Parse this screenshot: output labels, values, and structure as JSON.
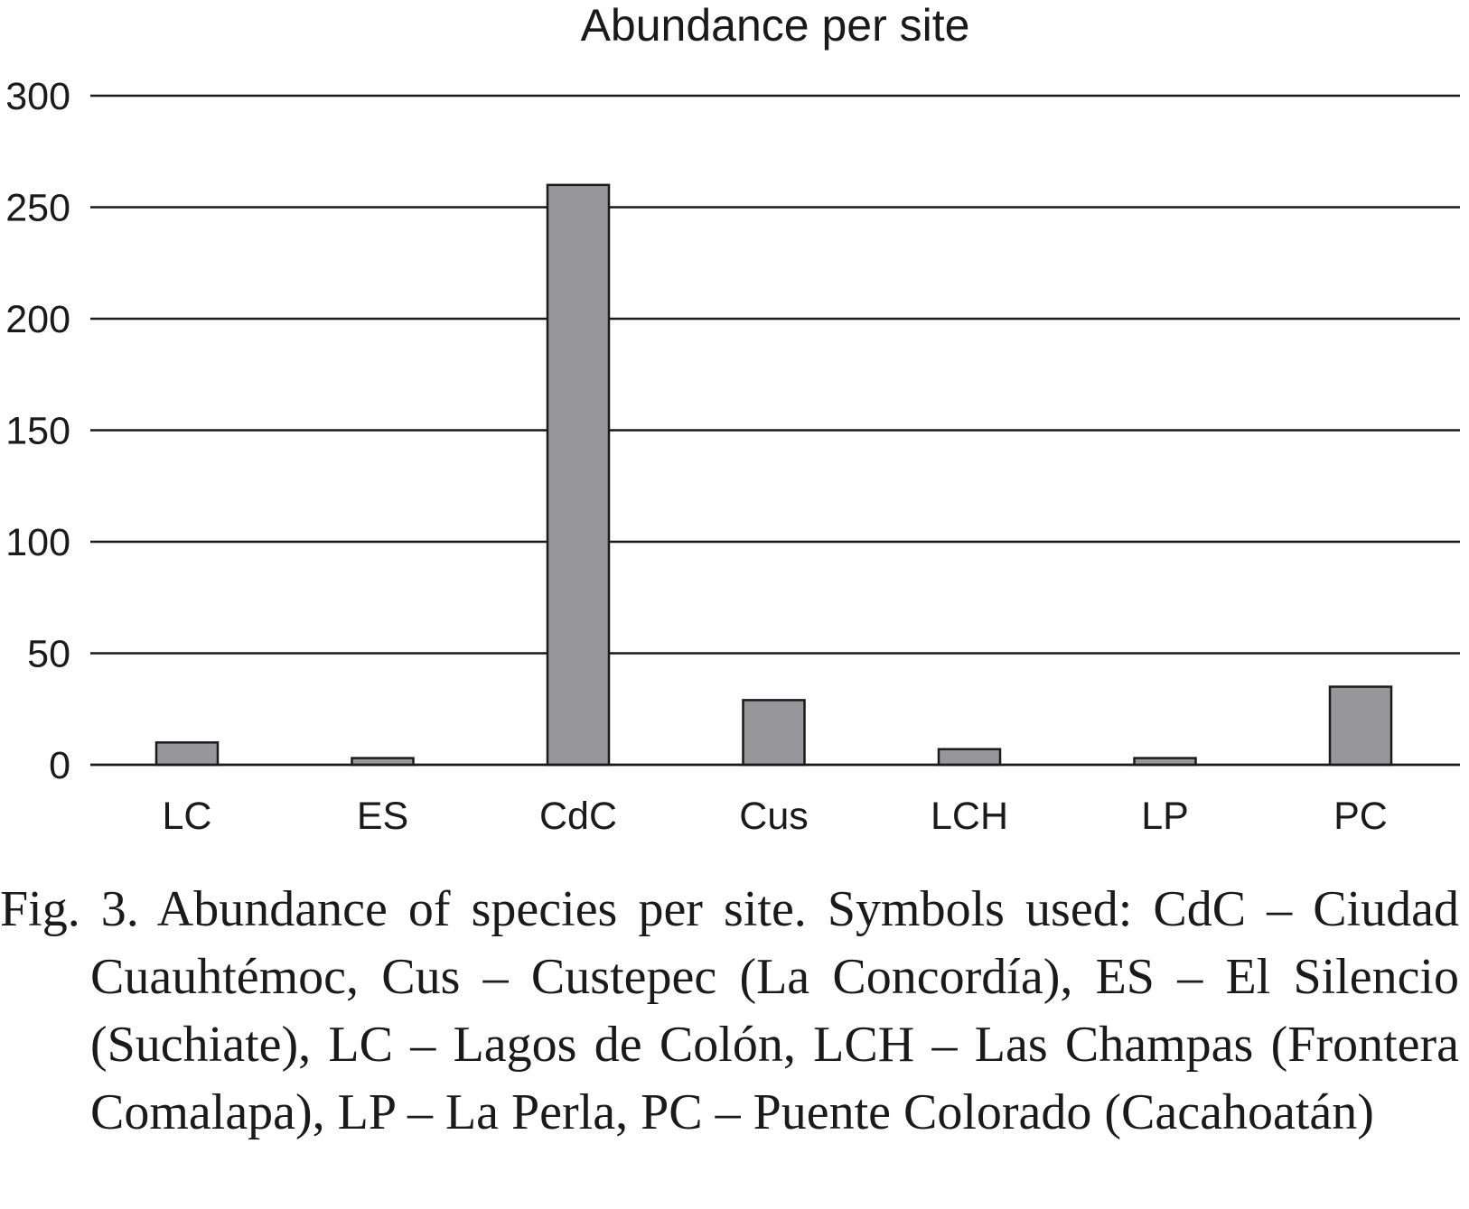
{
  "chart_data": {
    "type": "bar",
    "title": "Abundance per site",
    "xlabel": "",
    "ylabel": "",
    "categories": [
      "LC",
      "ES",
      "CdC",
      "Cus",
      "LCH",
      "LP",
      "PC"
    ],
    "values": [
      10,
      3,
      260,
      29,
      7,
      3,
      35
    ],
    "ylim": [
      0,
      300
    ],
    "yticks": [
      0,
      50,
      100,
      150,
      200,
      250,
      300
    ],
    "grid": true,
    "legend": "none",
    "bar_color": "#97979b"
  },
  "caption": "Fig. 3. Abundance of species per site. Symbols used: CdC – Ciudad Cuauhtémoc, Cus – Custepec (La Concordía), ES – El Silencio (Suchiate), LC – Lagos de Colón, LCH – Las Champas (Frontera Comalapa), LP – La Perla,  PC – Puente Colorado (Cacahoatán)"
}
